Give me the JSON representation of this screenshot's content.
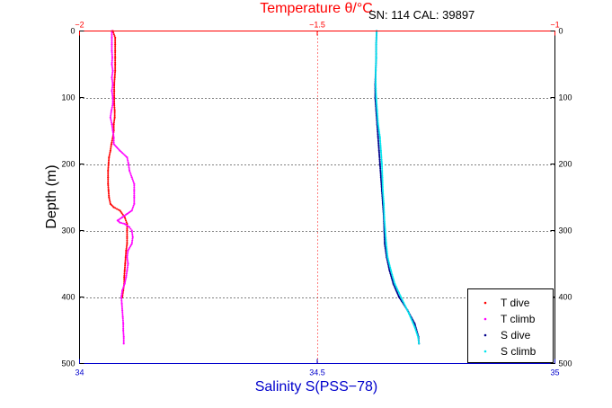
{
  "chart_data": {
    "type": "scatter",
    "header_text": "SN: 114  CAL: 39897",
    "top_axis": {
      "label": "Temperature θ/°C",
      "range": [
        -2,
        -1
      ],
      "ticks": [
        -2,
        -1.5,
        -1
      ],
      "tick_labels": [
        "−2",
        "−1.5",
        "−1"
      ],
      "color": "#ff0000"
    },
    "bottom_axis": {
      "label": "Salinity S(PSS−78)",
      "range": [
        34,
        35
      ],
      "ticks": [
        34,
        34.5,
        35
      ],
      "tick_labels": [
        "34",
        "34.5",
        "35"
      ],
      "color": "#0000cc"
    },
    "y_axis": {
      "label": "Depth (m)",
      "range": [
        0,
        500
      ],
      "inverted": true,
      "ticks": [
        0,
        100,
        200,
        300,
        400,
        500
      ],
      "tick_labels": [
        "0",
        "100",
        "200",
        "300",
        "400",
        "500"
      ]
    },
    "grid": true,
    "legend_position": "bottom-right",
    "series": [
      {
        "name": "T dive",
        "axis": "top",
        "color": "#ff0000",
        "points": [
          [
            -1.93,
            0
          ],
          [
            -1.925,
            10
          ],
          [
            -1.925,
            20
          ],
          [
            -1.925,
            30
          ],
          [
            -1.925,
            40
          ],
          [
            -1.925,
            50
          ],
          [
            -1.925,
            60
          ],
          [
            -1.926,
            70
          ],
          [
            -1.927,
            80
          ],
          [
            -1.927,
            90
          ],
          [
            -1.927,
            100
          ],
          [
            -1.927,
            110
          ],
          [
            -1.926,
            120
          ],
          [
            -1.926,
            130
          ],
          [
            -1.928,
            140
          ],
          [
            -1.928,
            150
          ],
          [
            -1.93,
            160
          ],
          [
            -1.933,
            170
          ],
          [
            -1.935,
            180
          ],
          [
            -1.938,
            190
          ],
          [
            -1.939,
            200
          ],
          [
            -1.94,
            210
          ],
          [
            -1.94,
            220
          ],
          [
            -1.94,
            230
          ],
          [
            -1.939,
            240
          ],
          [
            -1.938,
            250
          ],
          [
            -1.935,
            260
          ],
          [
            -1.928,
            265
          ],
          [
            -1.915,
            270
          ],
          [
            -1.905,
            280
          ],
          [
            -1.9,
            290
          ],
          [
            -1.9,
            300
          ],
          [
            -1.9,
            310
          ],
          [
            -1.9,
            320
          ],
          [
            -1.902,
            330
          ],
          [
            -1.903,
            340
          ],
          [
            -1.904,
            350
          ],
          [
            -1.905,
            360
          ],
          [
            -1.906,
            370
          ],
          [
            -1.906,
            380
          ],
          [
            -1.908,
            390
          ],
          [
            -1.91,
            400
          ]
        ]
      },
      {
        "name": "T climb",
        "axis": "top",
        "color": "#ff00ff",
        "points": [
          [
            -1.907,
            470
          ],
          [
            -1.907,
            460
          ],
          [
            -1.908,
            450
          ],
          [
            -1.908,
            440
          ],
          [
            -1.909,
            430
          ],
          [
            -1.91,
            420
          ],
          [
            -1.911,
            410
          ],
          [
            -1.912,
            400
          ],
          [
            -1.91,
            390
          ],
          [
            -1.905,
            380
          ],
          [
            -1.902,
            370
          ],
          [
            -1.9,
            360
          ],
          [
            -1.898,
            350
          ],
          [
            -1.9,
            340
          ],
          [
            -1.898,
            330
          ],
          [
            -1.89,
            320
          ],
          [
            -1.888,
            310
          ],
          [
            -1.89,
            300
          ],
          [
            -1.895,
            295
          ],
          [
            -1.905,
            290
          ],
          [
            -1.915,
            288
          ],
          [
            -1.92,
            285
          ],
          [
            -1.91,
            280
          ],
          [
            -1.9,
            275
          ],
          [
            -1.89,
            270
          ],
          [
            -1.885,
            260
          ],
          [
            -1.885,
            250
          ],
          [
            -1.885,
            240
          ],
          [
            -1.885,
            230
          ],
          [
            -1.89,
            220
          ],
          [
            -1.895,
            210
          ],
          [
            -1.897,
            200
          ],
          [
            -1.9,
            190
          ],
          [
            -1.915,
            180
          ],
          [
            -1.928,
            170
          ],
          [
            -1.928,
            160
          ],
          [
            -1.93,
            150
          ],
          [
            -1.932,
            140
          ],
          [
            -1.935,
            130
          ],
          [
            -1.933,
            120
          ],
          [
            -1.93,
            110
          ],
          [
            -1.93,
            100
          ],
          [
            -1.932,
            90
          ],
          [
            -1.93,
            80
          ],
          [
            -1.932,
            70
          ],
          [
            -1.93,
            60
          ],
          [
            -1.932,
            50
          ],
          [
            -1.931,
            40
          ],
          [
            -1.932,
            30
          ],
          [
            -1.932,
            20
          ],
          [
            -1.932,
            10
          ],
          [
            -1.932,
            0
          ]
        ]
      },
      {
        "name": "S dive",
        "axis": "bottom",
        "color": "#00008b",
        "points": [
          [
            34.625,
            0
          ],
          [
            34.624,
            20
          ],
          [
            34.624,
            40
          ],
          [
            34.623,
            60
          ],
          [
            34.622,
            80
          ],
          [
            34.622,
            100
          ],
          [
            34.624,
            120
          ],
          [
            34.626,
            140
          ],
          [
            34.628,
            160
          ],
          [
            34.63,
            180
          ],
          [
            34.632,
            200
          ],
          [
            34.634,
            220
          ],
          [
            34.636,
            240
          ],
          [
            34.638,
            260
          ],
          [
            34.64,
            280
          ],
          [
            34.641,
            300
          ],
          [
            34.642,
            320
          ],
          [
            34.646,
            340
          ],
          [
            34.652,
            360
          ],
          [
            34.66,
            380
          ],
          [
            34.672,
            400
          ],
          [
            34.69,
            420
          ],
          [
            34.705,
            440
          ],
          [
            34.713,
            460
          ],
          [
            34.714,
            470
          ]
        ]
      },
      {
        "name": "S climb",
        "axis": "bottom",
        "color": "#00e5ee",
        "points": [
          [
            34.714,
            470
          ],
          [
            34.712,
            460
          ],
          [
            34.705,
            445
          ],
          [
            34.693,
            425
          ],
          [
            34.676,
            400
          ],
          [
            34.663,
            380
          ],
          [
            34.655,
            360
          ],
          [
            34.648,
            340
          ],
          [
            34.645,
            320
          ],
          [
            34.643,
            300
          ],
          [
            34.641,
            280
          ],
          [
            34.64,
            260
          ],
          [
            34.638,
            240
          ],
          [
            34.637,
            220
          ],
          [
            34.636,
            200
          ],
          [
            34.634,
            180
          ],
          [
            34.632,
            160
          ],
          [
            34.628,
            140
          ],
          [
            34.626,
            120
          ],
          [
            34.624,
            100
          ],
          [
            34.623,
            80
          ],
          [
            34.623,
            60
          ],
          [
            34.624,
            40
          ],
          [
            34.624,
            20
          ],
          [
            34.625,
            0
          ]
        ]
      }
    ]
  }
}
